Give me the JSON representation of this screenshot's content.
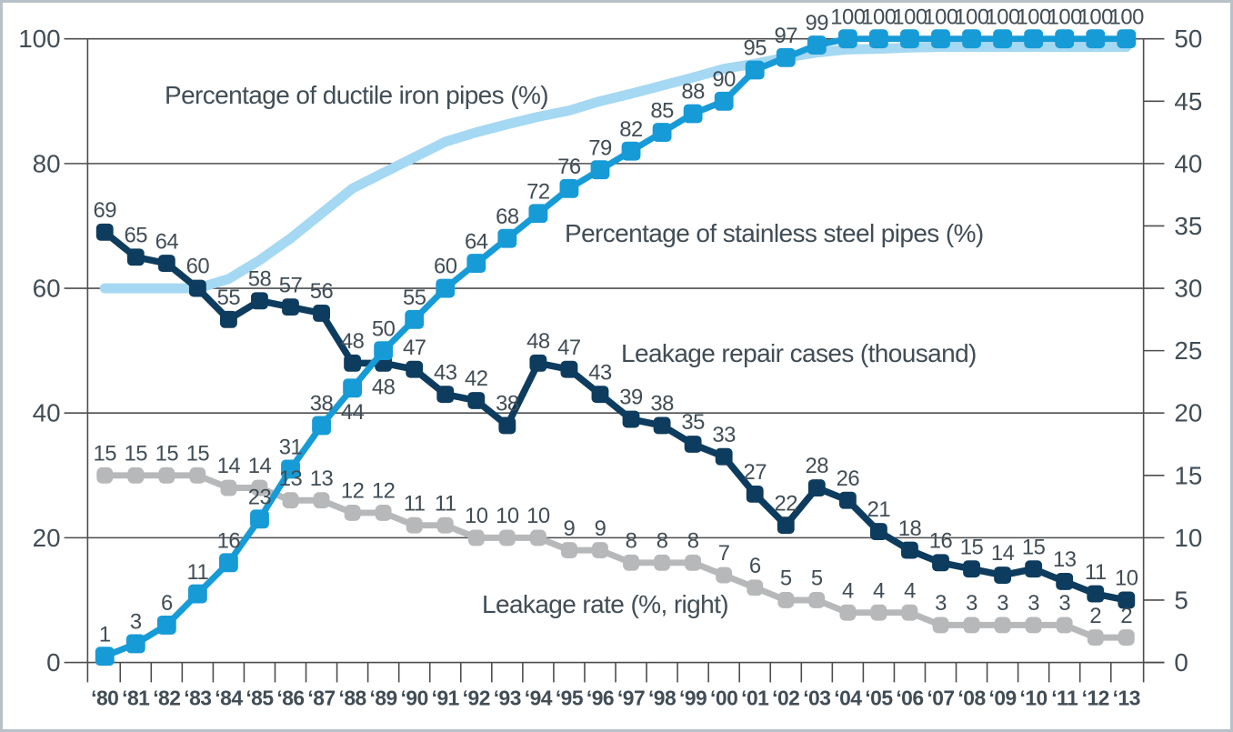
{
  "chart_data": {
    "type": "line",
    "title": "",
    "categories": [
      "‘80",
      "‘81",
      "‘82",
      "‘83",
      "‘84",
      "‘85",
      "‘86",
      "‘87",
      "‘88",
      "‘89",
      "‘90",
      "‘91",
      "‘92",
      "‘93",
      "‘94",
      "‘95",
      "‘96",
      "‘97",
      "‘98",
      "‘99",
      "‘00",
      "‘01",
      "‘02",
      "‘03",
      "‘04",
      "‘05",
      "‘06",
      "‘07",
      "‘08",
      "‘09",
      "‘10",
      "‘11",
      "‘12",
      "‘13"
    ],
    "left_axis": {
      "range": [
        0,
        100
      ],
      "tick_values": [
        0,
        20,
        40,
        60,
        80,
        100
      ],
      "grid": true
    },
    "right_axis": {
      "range": [
        0,
        50
      ],
      "tick_values": [
        0,
        5,
        10,
        15,
        20,
        25,
        30,
        35,
        40,
        45,
        50
      ],
      "grid": false
    },
    "legend_position": "inline-annotations",
    "series": [
      {
        "name": "Percentage of ductile iron pipes (%)",
        "axis": "left",
        "color": "#a5d8f2",
        "markers": false,
        "point_labels": false,
        "values_estimated": true,
        "values": [
          60,
          60,
          60,
          60,
          61.5,
          64.5,
          68,
          72,
          76,
          78.5,
          81,
          83.5,
          85,
          86.3,
          87.5,
          88.5,
          90,
          91.2,
          92.5,
          93.8,
          95.2,
          96,
          97,
          97.8,
          98.3,
          98.4,
          98.6,
          98.7,
          98.7,
          98.7,
          98.7,
          98.7,
          98.7,
          98.7
        ]
      },
      {
        "name": "Percentage of stainless steel pipes (%)",
        "axis": "left",
        "color": "#169bd7",
        "markers": true,
        "point_labels": true,
        "values": [
          1,
          3,
          6,
          11,
          16,
          23,
          31,
          38,
          44,
          50,
          55,
          60,
          64,
          68,
          72,
          76,
          79,
          82,
          85,
          88,
          90,
          95,
          97,
          99,
          100,
          100,
          100,
          100,
          100,
          100,
          100,
          100,
          100,
          100
        ]
      },
      {
        "name": "Leakage repair cases (thousand)",
        "axis": "left",
        "color": "#0d3c5e",
        "markers": true,
        "point_labels": true,
        "values": [
          69,
          65,
          64,
          60,
          55,
          58,
          57,
          56,
          48,
          48,
          47,
          43,
          42,
          38,
          48,
          47,
          43,
          39,
          38,
          35,
          33,
          27,
          22,
          28,
          26,
          21,
          18,
          16,
          15,
          14,
          15,
          13,
          11,
          10
        ]
      },
      {
        "name": "Leakage rate (%, right)",
        "axis": "right",
        "color": "#b7b8ba",
        "markers": true,
        "point_labels": true,
        "values": [
          15,
          15,
          15,
          15,
          14,
          14,
          13,
          13,
          12,
          12,
          11,
          11,
          10,
          10,
          10,
          9,
          9,
          8,
          8,
          8,
          7,
          6,
          5,
          5,
          4,
          4,
          4,
          3,
          3,
          3,
          3,
          3,
          2,
          2
        ]
      }
    ],
    "annotations": {
      "ductile": "Percentage of ductile iron pipes (%)",
      "stainless": "Percentage of stainless steel pipes (%)",
      "repair": "Leakage repair cases (thousand)",
      "rate": "Leakage rate (%, right)"
    },
    "colors": {
      "text": "#414d56",
      "axis": "#4c4d4f"
    }
  }
}
